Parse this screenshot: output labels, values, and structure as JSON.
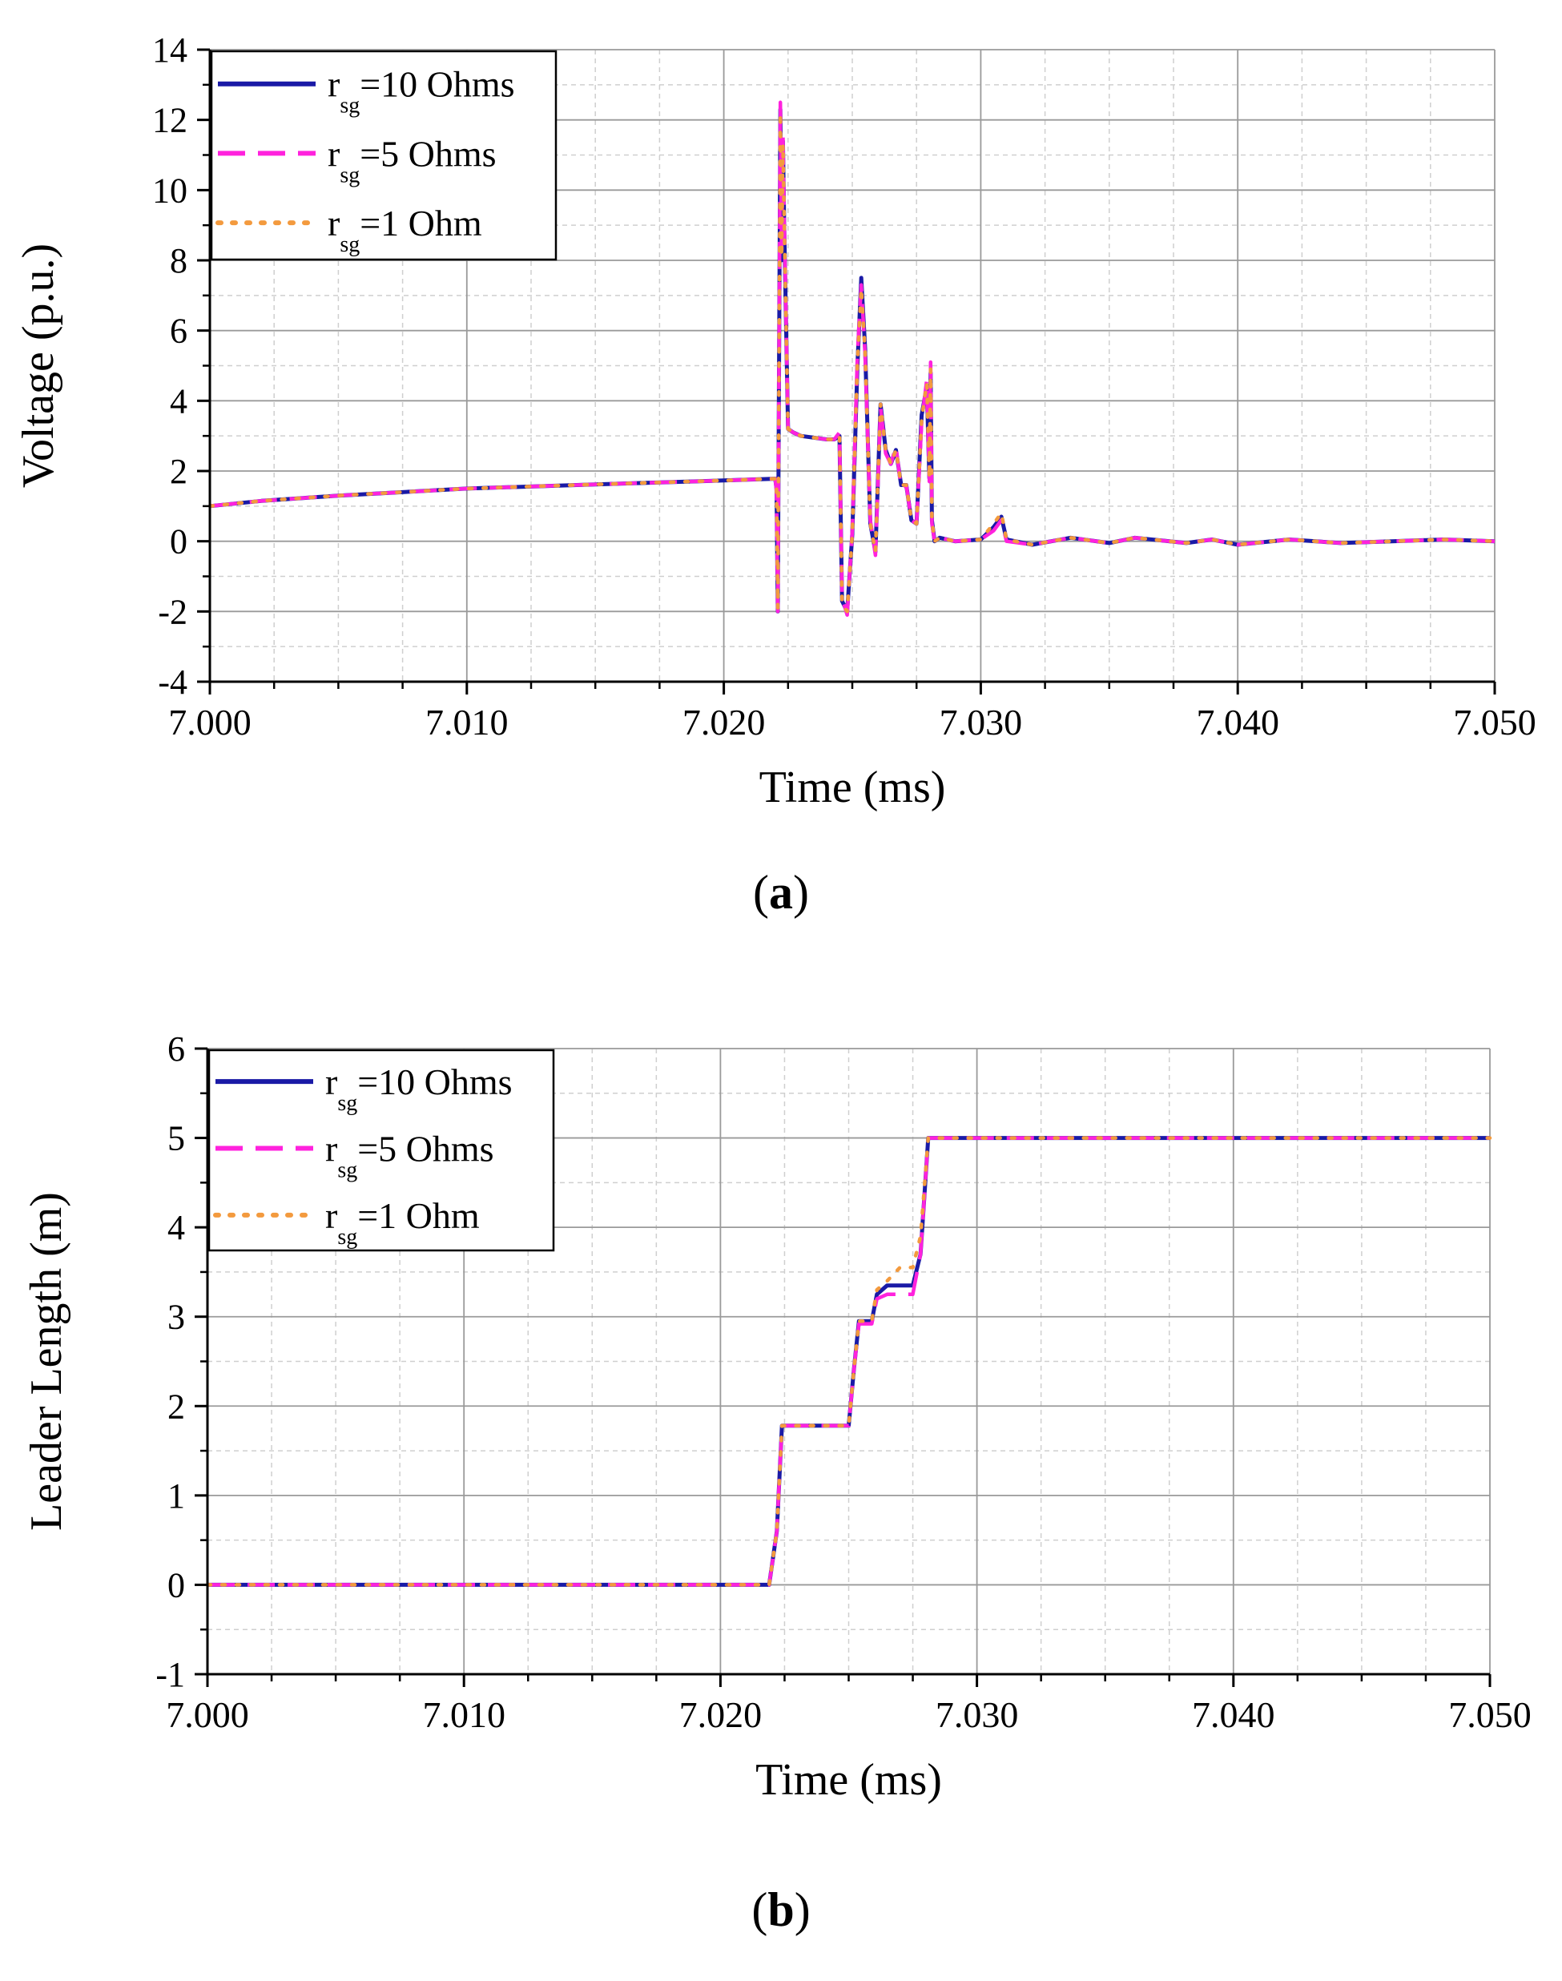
{
  "colors": {
    "series_10": "#1a1aa6",
    "series_5": "#ff22dd",
    "series_1": "#f39a3e",
    "grid_major": "#9a9a9a",
    "grid_minor": "#cfcfcf"
  },
  "panels": [
    {
      "letter": "a"
    },
    {
      "letter": "b"
    }
  ],
  "chart_data": [
    {
      "type": "line",
      "panel": "a",
      "title": "",
      "xlabel": "Time (ms)",
      "ylabel": "Voltage (p.u.)",
      "xlim": [
        7.0,
        7.05
      ],
      "ylim": [
        -4,
        14
      ],
      "grid": true,
      "legend_position": "top-left",
      "xticks": [
        7.0,
        7.01,
        7.02,
        7.03,
        7.04,
        7.05
      ],
      "xtick_labels": [
        "7.000",
        "7.010",
        "7.020",
        "7.030",
        "7.040",
        "7.050"
      ],
      "yticks": [
        -4,
        -2,
        0,
        2,
        4,
        6,
        8,
        10,
        12,
        14
      ],
      "ytick_labels": [
        "-4",
        "-2",
        "0",
        "2",
        "4",
        "6",
        "8",
        "10",
        "12",
        "14"
      ],
      "legend": [
        {
          "pre": "r",
          "sub": "sg",
          "post": "=10 Ohms",
          "style": "solid"
        },
        {
          "pre": "r",
          "sub": "sg",
          "post": "=5 Ohms",
          "style": "dash"
        },
        {
          "pre": "r",
          "sub": "sg",
          "post": "=1 Ohm",
          "style": "dot"
        }
      ],
      "series": [
        {
          "name": "rsg=10 Ohms",
          "x": [
            7.0,
            7.002,
            7.005,
            7.01,
            7.015,
            7.02,
            7.022,
            7.02205,
            7.0221,
            7.0222,
            7.02225,
            7.0223,
            7.02235,
            7.0225,
            7.0227,
            7.023,
            7.024,
            7.0243,
            7.0245,
            7.0246,
            7.0248,
            7.025,
            7.0252,
            7.02535,
            7.0255,
            7.0257,
            7.0259,
            7.0261,
            7.0263,
            7.0265,
            7.0267,
            7.0269,
            7.0271,
            7.0273,
            7.0275,
            7.0277,
            7.0279,
            7.028,
            7.02805,
            7.0281,
            7.0282,
            7.0284,
            7.029,
            7.03,
            7.0305,
            7.0308,
            7.031,
            7.032,
            7.0335,
            7.035,
            7.036,
            7.038,
            7.039,
            7.04,
            7.042,
            7.044,
            7.046,
            7.048,
            7.05
          ],
          "y": [
            1.0,
            1.15,
            1.3,
            1.5,
            1.62,
            1.73,
            1.78,
            1.5,
            -2.0,
            12.3,
            8.0,
            11.4,
            9.0,
            3.2,
            3.1,
            3.0,
            2.9,
            2.9,
            3.0,
            -1.7,
            -2.0,
            0.2,
            5.0,
            7.5,
            5.5,
            0.5,
            -0.3,
            3.9,
            2.6,
            2.2,
            2.6,
            1.6,
            1.6,
            0.6,
            0.5,
            3.6,
            4.4,
            1.8,
            4.8,
            0.6,
            0.0,
            0.1,
            0.0,
            0.05,
            0.4,
            0.7,
            0.05,
            -0.1,
            0.1,
            -0.05,
            0.1,
            -0.05,
            0.05,
            -0.1,
            0.05,
            -0.05,
            0.0,
            0.05,
            0.0
          ]
        },
        {
          "name": "rsg=5 Ohms",
          "x": [
            7.0,
            7.002,
            7.005,
            7.01,
            7.015,
            7.02,
            7.022,
            7.02205,
            7.0221,
            7.0222,
            7.02225,
            7.0223,
            7.02235,
            7.0225,
            7.0227,
            7.023,
            7.024,
            7.0243,
            7.0245,
            7.0246,
            7.0248,
            7.025,
            7.0252,
            7.02535,
            7.0255,
            7.0257,
            7.0259,
            7.0261,
            7.0263,
            7.0265,
            7.0267,
            7.0269,
            7.0271,
            7.0273,
            7.0275,
            7.0277,
            7.0279,
            7.028,
            7.02805,
            7.0281,
            7.0282,
            7.0284,
            7.029,
            7.03,
            7.0305,
            7.0308,
            7.031,
            7.032,
            7.0335,
            7.035,
            7.036,
            7.038,
            7.039,
            7.04,
            7.042,
            7.044,
            7.046,
            7.048,
            7.05
          ],
          "y": [
            1.0,
            1.15,
            1.3,
            1.5,
            1.62,
            1.73,
            1.78,
            1.4,
            -2.0,
            12.5,
            8.2,
            11.6,
            9.2,
            3.2,
            3.1,
            3.0,
            2.9,
            2.9,
            3.1,
            -1.6,
            -2.1,
            0.3,
            5.3,
            7.3,
            5.3,
            0.6,
            -0.4,
            3.8,
            2.5,
            2.2,
            2.7,
            1.5,
            1.6,
            0.6,
            0.5,
            3.4,
            4.6,
            1.7,
            5.1,
            0.5,
            0.0,
            0.1,
            0.0,
            0.05,
            0.3,
            0.6,
            0.0,
            -0.1,
            0.1,
            -0.05,
            0.1,
            -0.05,
            0.05,
            -0.1,
            0.05,
            -0.05,
            0.0,
            0.05,
            0.0
          ]
        },
        {
          "name": "rsg=1 Ohm",
          "x": [
            7.0,
            7.002,
            7.005,
            7.01,
            7.015,
            7.02,
            7.022,
            7.02205,
            7.0221,
            7.0222,
            7.02225,
            7.0223,
            7.02235,
            7.0225,
            7.0227,
            7.023,
            7.024,
            7.0243,
            7.0245,
            7.0246,
            7.0248,
            7.025,
            7.0252,
            7.02535,
            7.0255,
            7.0257,
            7.0259,
            7.0261,
            7.0263,
            7.0265,
            7.0267,
            7.0269,
            7.0271,
            7.0273,
            7.0275,
            7.0277,
            7.0279,
            7.028,
            7.02805,
            7.0281,
            7.0282,
            7.0284,
            7.029,
            7.03,
            7.0305,
            7.0308,
            7.031,
            7.032,
            7.0335,
            7.035,
            7.036,
            7.038,
            7.039,
            7.04,
            7.042,
            7.044,
            7.046,
            7.048,
            7.05
          ],
          "y": [
            1.0,
            1.15,
            1.3,
            1.5,
            1.62,
            1.73,
            1.78,
            1.5,
            -1.9,
            12.2,
            8.1,
            11.3,
            9.1,
            3.2,
            3.1,
            3.0,
            2.9,
            2.9,
            3.0,
            -1.8,
            -2.0,
            0.2,
            5.1,
            7.2,
            5.4,
            0.5,
            -0.3,
            3.9,
            2.6,
            2.2,
            2.6,
            1.6,
            1.6,
            0.6,
            0.5,
            3.5,
            4.5,
            1.8,
            4.9,
            0.6,
            0.0,
            0.1,
            0.0,
            0.05,
            0.5,
            0.8,
            0.05,
            -0.1,
            0.1,
            -0.05,
            0.1,
            -0.05,
            0.05,
            -0.1,
            0.05,
            -0.05,
            0.0,
            0.05,
            0.0
          ]
        }
      ]
    },
    {
      "type": "line",
      "panel": "b",
      "title": "",
      "xlabel": "Time (ms)",
      "ylabel": "Leader Length (m)",
      "xlim": [
        7.0,
        7.05
      ],
      "ylim": [
        -1,
        6
      ],
      "grid": true,
      "legend_position": "top-left",
      "xticks": [
        7.0,
        7.01,
        7.02,
        7.03,
        7.04,
        7.05
      ],
      "xtick_labels": [
        "7.000",
        "7.010",
        "7.020",
        "7.030",
        "7.040",
        "7.050"
      ],
      "yticks": [
        -1,
        0,
        1,
        2,
        3,
        4,
        5,
        6
      ],
      "ytick_labels": [
        "-1",
        "0",
        "1",
        "2",
        "3",
        "4",
        "5",
        "6"
      ],
      "legend": [
        {
          "pre": "r",
          "sub": "sg",
          "post": "=10 Ohms",
          "style": "solid"
        },
        {
          "pre": "r",
          "sub": "sg",
          "post": "=5 Ohms",
          "style": "dash"
        },
        {
          "pre": "r",
          "sub": "sg",
          "post": "=1 Ohm",
          "style": "dot"
        }
      ],
      "series": [
        {
          "name": "rsg=10 Ohms",
          "x": [
            7.0,
            7.0219,
            7.0222,
            7.0224,
            7.025,
            7.0252,
            7.0254,
            7.0259,
            7.0261,
            7.0265,
            7.0275,
            7.0278,
            7.0281,
            7.05
          ],
          "y": [
            0,
            0,
            0.6,
            1.78,
            1.78,
            2.4,
            2.95,
            2.95,
            3.25,
            3.35,
            3.35,
            3.7,
            5.0,
            5.0
          ]
        },
        {
          "name": "rsg=5 Ohms",
          "x": [
            7.0,
            7.0219,
            7.0222,
            7.0224,
            7.025,
            7.0252,
            7.0254,
            7.0259,
            7.0261,
            7.0265,
            7.0268,
            7.0275,
            7.0278,
            7.0281,
            7.05
          ],
          "y": [
            0,
            0,
            0.6,
            1.78,
            1.78,
            2.4,
            2.92,
            2.92,
            3.2,
            3.25,
            3.25,
            3.25,
            3.7,
            5.0,
            5.0
          ]
        },
        {
          "name": "rsg=1 Ohm",
          "x": [
            7.0,
            7.0219,
            7.0222,
            7.0224,
            7.025,
            7.0252,
            7.0254,
            7.0259,
            7.0261,
            7.0265,
            7.027,
            7.0275,
            7.0278,
            7.0281,
            7.05
          ],
          "y": [
            0,
            0,
            0.6,
            1.78,
            1.78,
            2.4,
            2.95,
            2.95,
            3.3,
            3.4,
            3.55,
            3.55,
            3.9,
            5.0,
            5.0
          ]
        }
      ]
    }
  ]
}
